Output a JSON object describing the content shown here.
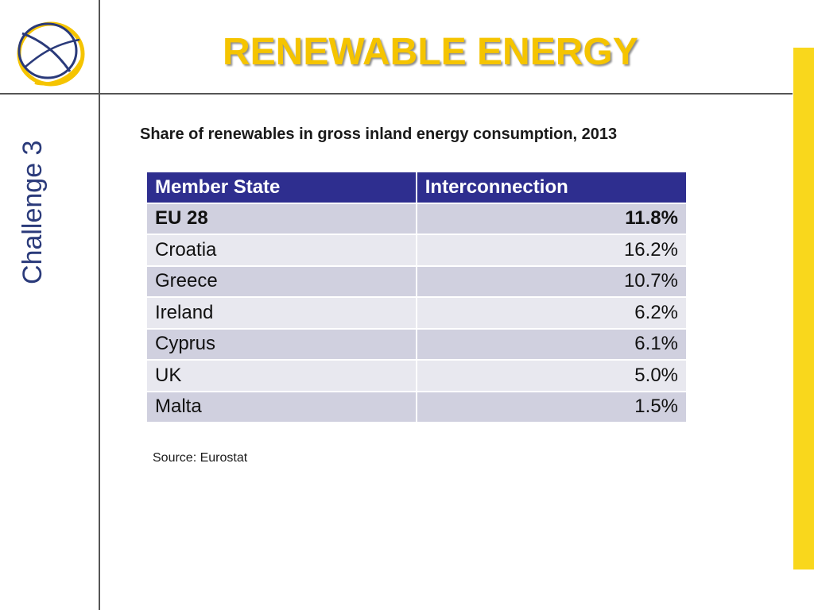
{
  "slide": {
    "title": "RENEWABLE ENERGY",
    "side_label": "Challenge 3",
    "subtitle": "Share of renewables in gross inland energy consumption, 2013",
    "source": "Source: Eurostat"
  },
  "table": {
    "headers": [
      "Member State",
      "Interconnection"
    ],
    "rows": [
      {
        "state": "EU 28",
        "value": "11.8%",
        "bold": true
      },
      {
        "state": "Croatia",
        "value": "16.2%"
      },
      {
        "state": "Greece",
        "value": "10.7%"
      },
      {
        "state": "Ireland",
        "value": "6.2%"
      },
      {
        "state": "Cyprus",
        "value": "6.1%"
      },
      {
        "state": "UK",
        "value": "5.0%"
      },
      {
        "state": "Malta",
        "value": "1.5%"
      }
    ]
  },
  "colors": {
    "title": "#f5c400",
    "header_bg": "#2e2e8f",
    "side_label": "#2a3a7a",
    "accent_bar": "#f9d71c"
  },
  "icons": {
    "logo": "challenge-logo-icon"
  }
}
